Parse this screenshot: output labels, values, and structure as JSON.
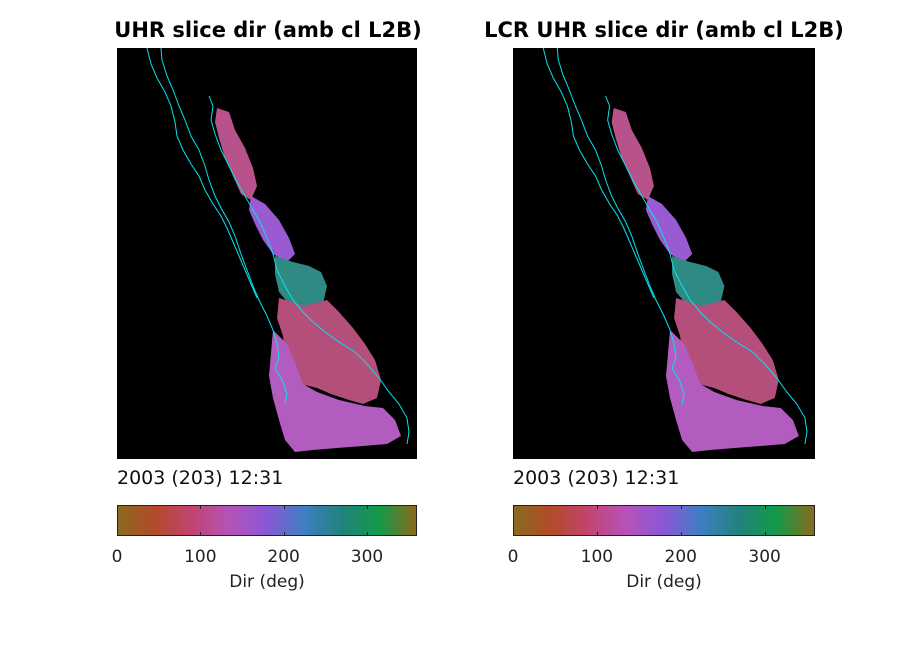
{
  "chart_data": [
    {
      "type": "heatmap",
      "title": "UHR slice dir (amb cl L2B)",
      "caption": "2003 (203) 12:31",
      "colorbar": {
        "label": "Dir (deg)",
        "range": [
          0,
          360
        ],
        "ticks": [
          0,
          100,
          200,
          300
        ],
        "tick_labels": [
          "0",
          "100",
          "200",
          "300"
        ],
        "colors": [
          "#8a6a1e",
          "#b34a2a",
          "#c24472",
          "#b553b9",
          "#8a57d6",
          "#3e7fc2",
          "#21827c",
          "#139a4a",
          "#8a6a1e"
        ]
      },
      "background": "#000000",
      "coastline_color": "#00e5ee"
    },
    {
      "type": "heatmap",
      "title": "LCR UHR slice dir (amb cl L2B)",
      "caption": "2003 (203) 12:31",
      "colorbar": {
        "label": "Dir (deg)",
        "range": [
          0,
          360
        ],
        "ticks": [
          0,
          100,
          200,
          300
        ],
        "tick_labels": [
          "0",
          "100",
          "200",
          "300"
        ],
        "colors": [
          "#8a6a1e",
          "#b34a2a",
          "#c24472",
          "#b553b9",
          "#8a57d6",
          "#3e7fc2",
          "#21827c",
          "#139a4a",
          "#8a6a1e"
        ]
      },
      "background": "#000000",
      "coastline_color": "#00e5ee"
    }
  ]
}
